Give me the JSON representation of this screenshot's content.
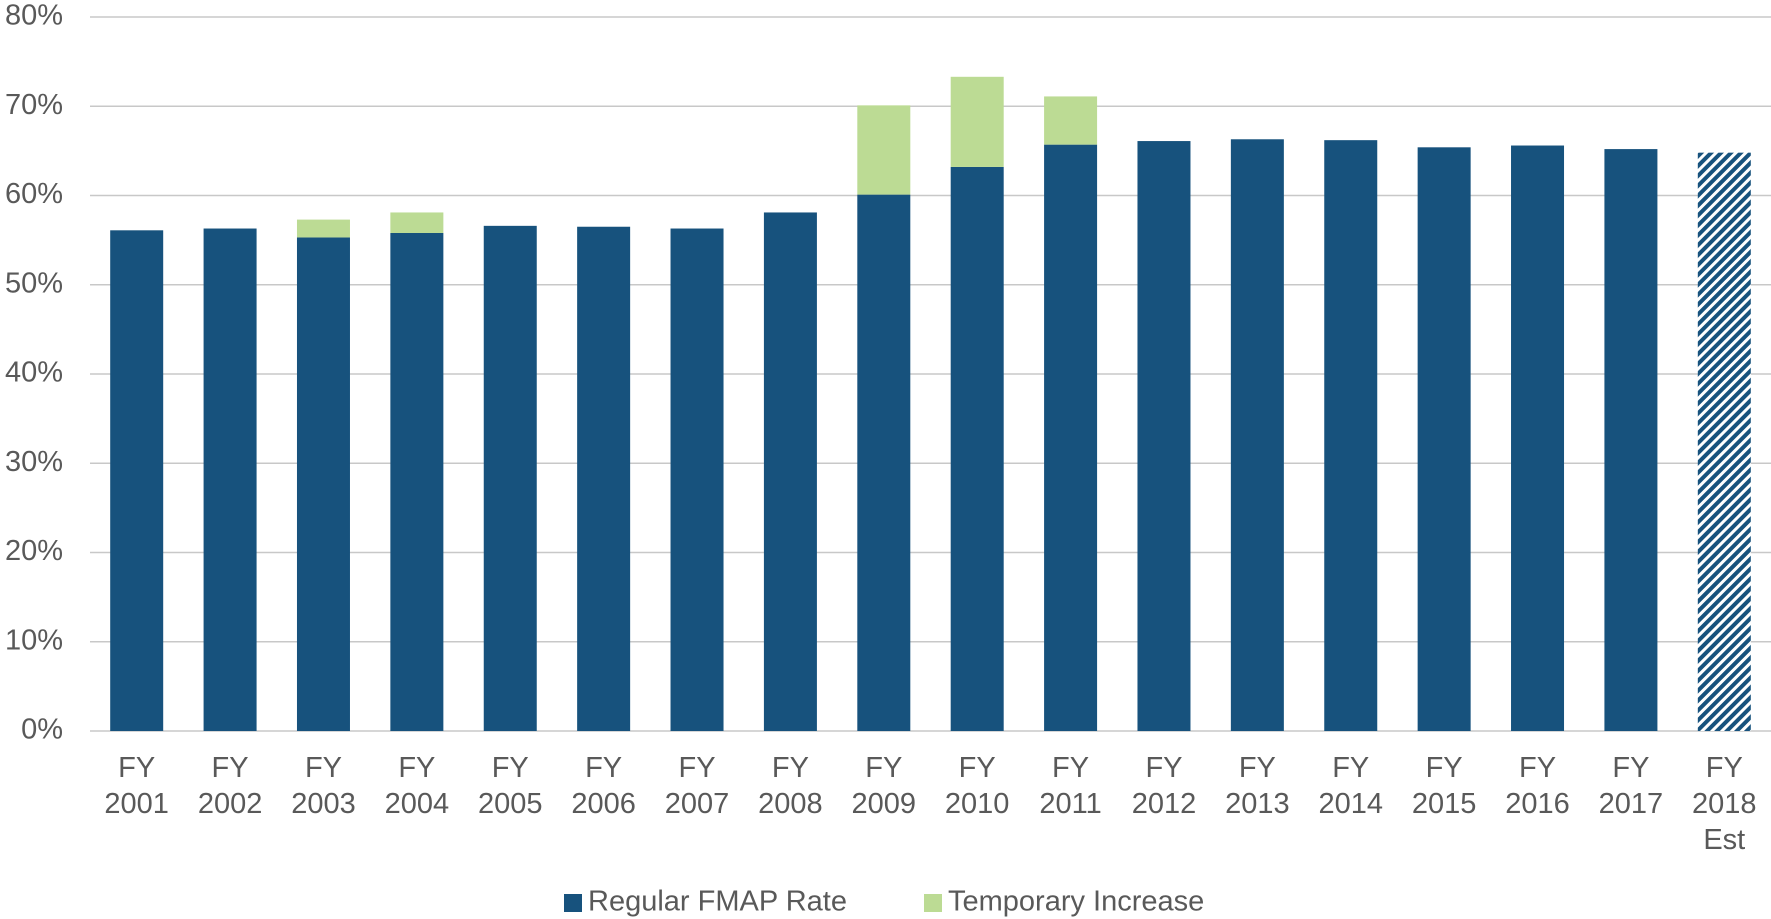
{
  "chart_data": {
    "type": "stacked_bar",
    "categories": [
      [
        "FY",
        "2001"
      ],
      [
        "FY",
        "2002"
      ],
      [
        "FY",
        "2003"
      ],
      [
        "FY",
        "2004"
      ],
      [
        "FY",
        "2005"
      ],
      [
        "FY",
        "2006"
      ],
      [
        "FY",
        "2007"
      ],
      [
        "FY",
        "2008"
      ],
      [
        "FY",
        "2009"
      ],
      [
        "FY",
        "2010"
      ],
      [
        "FY",
        "2011"
      ],
      [
        "FY",
        "2012"
      ],
      [
        "FY",
        "2013"
      ],
      [
        "FY",
        "2014"
      ],
      [
        "FY",
        "2015"
      ],
      [
        "FY",
        "2016"
      ],
      [
        "FY",
        "2017"
      ],
      [
        "FY",
        "2018",
        "Est"
      ]
    ],
    "series": [
      {
        "name": "Regular FMAP Rate",
        "color": "#17527d",
        "values": [
          56.1,
          56.3,
          55.3,
          55.8,
          56.6,
          56.5,
          56.3,
          58.1,
          60.1,
          63.2,
          65.7,
          66.1,
          66.3,
          66.2,
          65.4,
          65.6,
          65.2,
          64.8
        ]
      },
      {
        "name": "Temporary Increase",
        "color": "#bcdb94",
        "values": [
          null,
          null,
          2.0,
          2.3,
          null,
          null,
          null,
          null,
          10.0,
          10.1,
          5.4,
          null,
          null,
          null,
          null,
          null,
          null,
          null
        ]
      }
    ],
    "hatched": [
      false,
      false,
      false,
      false,
      false,
      false,
      false,
      false,
      false,
      false,
      false,
      false,
      false,
      false,
      false,
      false,
      false,
      true
    ],
    "ylim": [
      0,
      80
    ],
    "yticks": [
      {
        "value": 0,
        "label": "0%"
      },
      {
        "value": 10,
        "label": "10%"
      },
      {
        "value": 20,
        "label": "20%"
      },
      {
        "value": 30,
        "label": "30%"
      },
      {
        "value": 40,
        "label": "40%"
      },
      {
        "value": 50,
        "label": "50%"
      },
      {
        "value": 60,
        "label": "60%"
      },
      {
        "value": 70,
        "label": "70%"
      },
      {
        "value": 80,
        "label": "80%"
      }
    ],
    "grid": true,
    "legend": "bottom"
  }
}
